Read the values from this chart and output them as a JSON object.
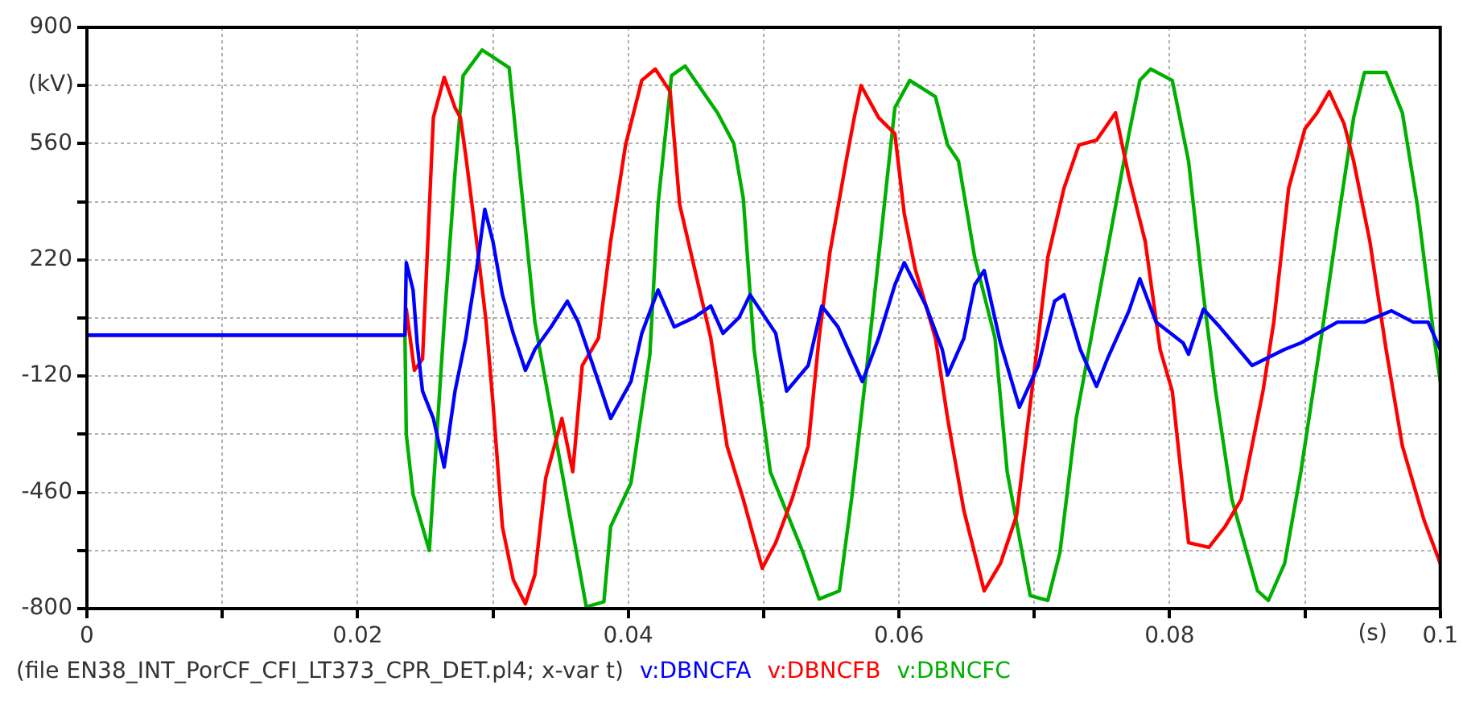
{
  "chart_data": {
    "type": "line",
    "xlabel": "(s)",
    "ylabel": "(kV)",
    "annotations": [
      "(file EN38_INT_PorCF_CFI_LT373_CPR_DET.pl4; x-var t)"
    ],
    "xlim": [
      0,
      0.1
    ],
    "xticks": [
      0,
      {
        "value": 0.01,
        "label": null
      },
      0.02,
      {
        "value": 0.03,
        "label": null
      },
      0.04,
      {
        "value": 0.05,
        "label": null
      },
      0.06,
      {
        "value": 0.07,
        "label": null
      },
      0.08,
      {
        "value": 0.09,
        "label": null
      },
      0.1
    ],
    "ylim": [
      -800,
      900
    ],
    "yticks": [
      -800,
      {
        "value": -630,
        "label": null
      },
      -460,
      {
        "value": -290,
        "label": null
      },
      -120,
      {
        "value": 50,
        "label": null
      },
      220,
      {
        "value": 390,
        "label": null
      },
      560,
      {
        "value": 730,
        "label": null
      },
      900
    ],
    "grid": true,
    "legend": "bottom",
    "marker": "none",
    "line_style": "solid",
    "series": [
      {
        "name": "v:DBNCFA",
        "color": "#0000ff",
        "x": [
          0,
          0.0235,
          0.0236,
          0.0241,
          0.0244,
          0.0248,
          0.0256,
          0.0264,
          0.0272,
          0.028,
          0.0283,
          0.0288,
          0.0294,
          0.03,
          0.0307,
          0.0315,
          0.0324,
          0.0331,
          0.0343,
          0.0355,
          0.0363,
          0.0378,
          0.0387,
          0.0402,
          0.041,
          0.0422,
          0.0434,
          0.0449,
          0.0461,
          0.047,
          0.0482,
          0.049,
          0.0509,
          0.0517,
          0.0533,
          0.0543,
          0.0555,
          0.0573,
          0.0585,
          0.0597,
          0.0604,
          0.062,
          0.0632,
          0.0636,
          0.0648,
          0.0656,
          0.0663,
          0.0675,
          0.0689,
          0.0703,
          0.0715,
          0.0722,
          0.0734,
          0.0746,
          0.0754,
          0.077,
          0.0778,
          0.079,
          0.081,
          0.0814,
          0.0825,
          0.0837,
          0.0861,
          0.0885,
          0.0897,
          0.0924,
          0.0944,
          0.0964,
          0.098,
          0.0991,
          0.1
        ],
        "values": [
          0,
          0,
          212,
          132,
          -23,
          -164,
          -244,
          -386,
          -164,
          -9,
          71,
          194,
          368,
          274,
          118,
          5,
          -103,
          -42,
          24,
          99,
          38,
          -136,
          -244,
          -136,
          5,
          132,
          24,
          52,
          85,
          5,
          52,
          118,
          5,
          -164,
          -89,
          85,
          24,
          -136,
          -9,
          147,
          212,
          85,
          -42,
          -117,
          -9,
          147,
          189,
          -23,
          -211,
          -89,
          99,
          118,
          -42,
          -150,
          -70,
          71,
          165,
          38,
          -23,
          -56,
          76,
          24,
          -89,
          -42,
          -23,
          38,
          38,
          71,
          38,
          38,
          -42
        ]
      },
      {
        "name": "v:DBNCFB",
        "color": "#ff0000",
        "x": [
          0,
          0.0235,
          0.0236,
          0.0242,
          0.0248,
          0.0253,
          0.0256,
          0.0264,
          0.0272,
          0.0276,
          0.028,
          0.0288,
          0.0295,
          0.03,
          0.0307,
          0.0315,
          0.0324,
          0.0331,
          0.0339,
          0.0351,
          0.0359,
          0.0366,
          0.0378,
          0.0387,
          0.0398,
          0.041,
          0.042,
          0.0431,
          0.0438,
          0.0449,
          0.0461,
          0.0473,
          0.0485,
          0.0499,
          0.0509,
          0.0521,
          0.0533,
          0.0541,
          0.0549,
          0.0561,
          0.0567,
          0.0572,
          0.0585,
          0.0597,
          0.0604,
          0.0612,
          0.0627,
          0.0636,
          0.0648,
          0.0663,
          0.0675,
          0.0687,
          0.0703,
          0.071,
          0.0722,
          0.0733,
          0.0746,
          0.076,
          0.077,
          0.0782,
          0.0793,
          0.0802,
          0.0814,
          0.0829,
          0.0841,
          0.0853,
          0.0869,
          0.0877,
          0.0888,
          0.09,
          0.0909,
          0.0918,
          0.0929,
          0.0936,
          0.0948,
          0.096,
          0.0972,
          0.0988,
          0.1
        ],
        "values": [
          0,
          0,
          76,
          -103,
          -70,
          368,
          636,
          754,
          665,
          636,
          523,
          274,
          38,
          -197,
          -560,
          -715,
          -786,
          -701,
          -418,
          -244,
          -400,
          -89,
          -9,
          274,
          556,
          745,
          778,
          712,
          382,
          194,
          -9,
          -324,
          -480,
          -682,
          -607,
          -480,
          -324,
          -9,
          241,
          509,
          636,
          730,
          636,
          589,
          354,
          194,
          -9,
          -244,
          -513,
          -748,
          -668,
          -527,
          -9,
          227,
          430,
          556,
          570,
          650,
          462,
          274,
          -42,
          -164,
          -607,
          -621,
          -560,
          -480,
          -164,
          38,
          430,
          603,
          650,
          712,
          617,
          509,
          274,
          -42,
          -324,
          -541,
          -668
        ]
      },
      {
        "name": "v:DBNCFC",
        "color": "#00b000",
        "x": [
          0,
          0.0235,
          0.0236,
          0.0241,
          0.0253,
          0.0264,
          0.0272,
          0.0278,
          0.0292,
          0.0312,
          0.0321,
          0.0331,
          0.0369,
          0.0382,
          0.0387,
          0.0402,
          0.0416,
          0.0422,
          0.0432,
          0.0442,
          0.0466,
          0.0478,
          0.0485,
          0.0493,
          0.0505,
          0.0529,
          0.0541,
          0.0556,
          0.0565,
          0.0576,
          0.0585,
          0.0597,
          0.0608,
          0.0627,
          0.0636,
          0.0644,
          0.0656,
          0.0671,
          0.068,
          0.0697,
          0.071,
          0.0719,
          0.0731,
          0.0742,
          0.077,
          0.0778,
          0.0786,
          0.0802,
          0.0814,
          0.0825,
          0.0834,
          0.0846,
          0.0865,
          0.0873,
          0.0885,
          0.0897,
          0.0912,
          0.0924,
          0.0936,
          0.0944,
          0.096,
          0.0972,
          0.0983,
          0.0995,
          0.1
        ],
        "values": [
          0,
          0,
          -291,
          -466,
          -630,
          38,
          476,
          759,
          834,
          782,
          430,
          38,
          -795,
          -780,
          -560,
          -433,
          -56,
          382,
          759,
          787,
          650,
          560,
          400,
          -42,
          -400,
          -635,
          -772,
          -748,
          -480,
          -103,
          227,
          665,
          745,
          697,
          556,
          509,
          227,
          -9,
          -400,
          -762,
          -776,
          -635,
          -244,
          -9,
          589,
          745,
          778,
          745,
          509,
          118,
          -164,
          -480,
          -748,
          -776,
          -668,
          -400,
          -9,
          321,
          636,
          768,
          768,
          650,
          382,
          5,
          -136
        ]
      }
    ]
  }
}
